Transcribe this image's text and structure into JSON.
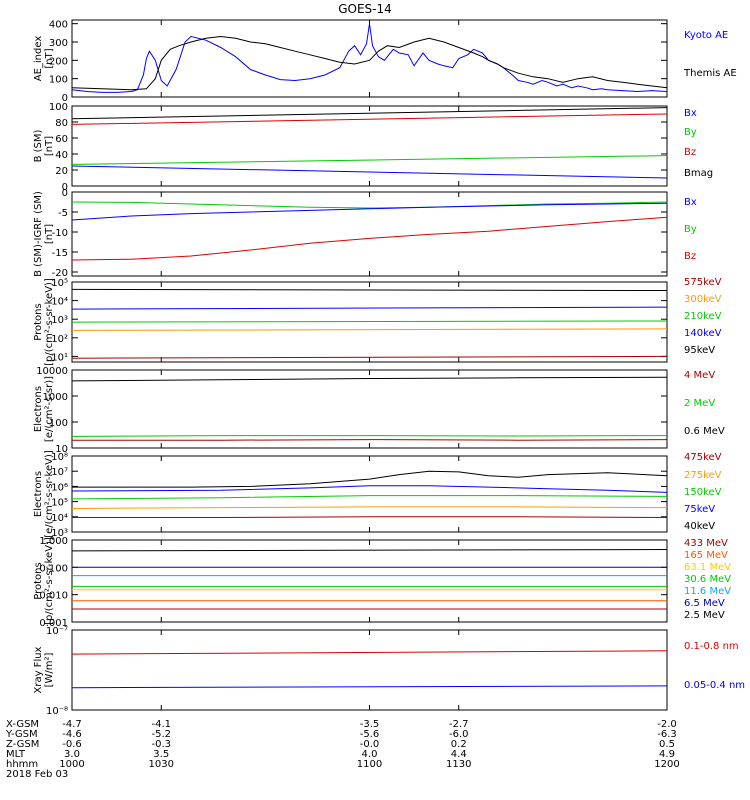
{
  "title": "GOES-14",
  "chart_data": [
    {
      "type": "line",
      "ylabel": "AE_index\n[nT]",
      "ylim": [
        0,
        420
      ],
      "yscale": "linear",
      "yticks": [
        0,
        100,
        200,
        300,
        400
      ],
      "ytick_labels": [
        "0",
        "100",
        "200",
        "300",
        "400"
      ],
      "legend": [
        {
          "name": "Kyoto AE",
          "color": "#0000ff"
        },
        {
          "name": "Themis AE",
          "color": "#000000"
        }
      ],
      "series": [
        {
          "name": "Kyoto AE",
          "color": "#0000ff",
          "x": [
            1000,
            1005,
            1010,
            1015,
            1020,
            1022,
            1024,
            1025,
            1026,
            1028,
            1030,
            1032,
            1035,
            1038,
            1040,
            1045,
            1050,
            1055,
            1060,
            1065,
            1070,
            1075,
            1080,
            1085,
            1090,
            1093,
            1095,
            1097,
            1099,
            1100,
            1101,
            1103,
            1105,
            1108,
            1110,
            1113,
            1115,
            1118,
            1120,
            1123,
            1125,
            1128,
            1130,
            1133,
            1135,
            1138,
            1140,
            1143,
            1145,
            1148,
            1150,
            1153,
            1155,
            1158,
            1160,
            1163,
            1165,
            1168,
            1170,
            1173,
            1175,
            1178,
            1180,
            1185,
            1190,
            1195,
            1200
          ],
          "y": [
            40,
            30,
            25,
            25,
            30,
            40,
            120,
            210,
            250,
            200,
            90,
            60,
            150,
            300,
            330,
            310,
            270,
            220,
            150,
            120,
            95,
            90,
            100,
            120,
            160,
            250,
            280,
            230,
            290,
            400,
            280,
            220,
            200,
            260,
            240,
            230,
            170,
            240,
            200,
            180,
            170,
            160,
            210,
            230,
            260,
            240,
            200,
            180,
            160,
            120,
            90,
            80,
            70,
            90,
            80,
            60,
            70,
            50,
            60,
            50,
            40,
            45,
            40,
            35,
            30,
            35,
            30
          ]
        },
        {
          "name": "Themis AE",
          "color": "#000000",
          "x": [
            1000,
            1010,
            1020,
            1025,
            1028,
            1030,
            1033,
            1036,
            1040,
            1045,
            1050,
            1055,
            1060,
            1065,
            1070,
            1075,
            1080,
            1085,
            1090,
            1095,
            1100,
            1103,
            1106,
            1110,
            1115,
            1120,
            1125,
            1130,
            1135,
            1138,
            1140,
            1143,
            1145,
            1150,
            1155,
            1160,
            1165,
            1170,
            1175,
            1180,
            1185,
            1190,
            1195,
            1200
          ],
          "y": [
            50,
            45,
            40,
            45,
            100,
            200,
            260,
            280,
            300,
            320,
            330,
            320,
            300,
            290,
            270,
            250,
            230,
            210,
            190,
            180,
            200,
            250,
            280,
            270,
            300,
            320,
            300,
            270,
            240,
            220,
            200,
            180,
            160,
            130,
            110,
            100,
            80,
            100,
            110,
            90,
            80,
            70,
            60,
            50
          ]
        }
      ]
    },
    {
      "type": "line",
      "ylabel": "B (SM)\n[nT]",
      "ylim": [
        0,
        100
      ],
      "yscale": "linear",
      "yticks": [
        0,
        20,
        40,
        60,
        80,
        100
      ],
      "ytick_labels": [
        "0",
        "20",
        "40",
        "60",
        "80",
        "100"
      ],
      "legend": [
        {
          "name": "Bx",
          "color": "#0000ff"
        },
        {
          "name": "By",
          "color": "#00cc00"
        },
        {
          "name": "Bz",
          "color": "#dd0000"
        },
        {
          "name": "Bmag",
          "color": "#000000"
        }
      ],
      "series": [
        {
          "name": "Bmag",
          "color": "#000000",
          "x": [
            1000,
            1200
          ],
          "y": [
            84,
            98
          ]
        },
        {
          "name": "Bz",
          "color": "#dd0000",
          "x": [
            1000,
            1200
          ],
          "y": [
            77,
            90
          ]
        },
        {
          "name": "By",
          "color": "#00cc00",
          "x": [
            1000,
            1200
          ],
          "y": [
            27,
            38
          ]
        },
        {
          "name": "Bx",
          "color": "#0000ff",
          "x": [
            1000,
            1200
          ],
          "y": [
            25,
            10
          ]
        }
      ]
    },
    {
      "type": "line",
      "ylabel": "B (SM)-IGRF (SM)\n[nT]",
      "ylim": [
        -21,
        0
      ],
      "yscale": "linear",
      "yticks": [
        -20,
        -15,
        -10,
        -5,
        0
      ],
      "ytick_labels": [
        "-20",
        "-15",
        "-10",
        "-5",
        "0"
      ],
      "legend": [
        {
          "name": "Bx",
          "color": "#0000ff"
        },
        {
          "name": "By",
          "color": "#00cc00"
        },
        {
          "name": "Bz",
          "color": "#dd0000"
        }
      ],
      "series": [
        {
          "name": "By",
          "color": "#00cc00",
          "x": [
            1000,
            1020,
            1040,
            1060,
            1080,
            1100,
            1120,
            1140,
            1160,
            1180,
            1200
          ],
          "y": [
            -2.5,
            -2.6,
            -3.0,
            -3.4,
            -3.8,
            -4.0,
            -3.8,
            -3.4,
            -3.0,
            -2.8,
            -2.5
          ]
        },
        {
          "name": "Bx",
          "color": "#0000ff",
          "x": [
            1000,
            1020,
            1040,
            1060,
            1080,
            1100,
            1120,
            1140,
            1160,
            1180,
            1200
          ],
          "y": [
            -7.0,
            -6.0,
            -5.4,
            -5.0,
            -4.6,
            -4.2,
            -3.8,
            -3.5,
            -3.2,
            -3.0,
            -2.8
          ]
        },
        {
          "name": "Bz",
          "color": "#dd0000",
          "x": [
            1000,
            1020,
            1040,
            1060,
            1080,
            1100,
            1120,
            1140,
            1160,
            1180,
            1200
          ],
          "y": [
            -17.0,
            -16.8,
            -16.0,
            -14.5,
            -12.8,
            -11.6,
            -10.6,
            -9.8,
            -8.6,
            -7.4,
            -6.3
          ]
        }
      ]
    },
    {
      "type": "line",
      "ylabel": "Protons\n[p/(cm²-s-sr-keV)]",
      "ylim": [
        5,
        100000
      ],
      "yscale": "log",
      "yticks": [
        10,
        100,
        1000,
        10000,
        100000
      ],
      "ytick_labels": [
        "10¹",
        "10²",
        "10³",
        "10⁴",
        "10⁵"
      ],
      "legend": [
        {
          "name": "575keV",
          "color": "#aa0000"
        },
        {
          "name": "300keV",
          "color": "#ff9900"
        },
        {
          "name": "210keV",
          "color": "#00cc00"
        },
        {
          "name": "140keV",
          "color": "#0000ff"
        },
        {
          "name": "95keV",
          "color": "#000000"
        }
      ],
      "series": [
        {
          "name": "95keV",
          "color": "#000000",
          "x": [
            1000,
            1200
          ],
          "y": [
            40000,
            35000
          ]
        },
        {
          "name": "140keV",
          "color": "#0000ff",
          "x": [
            1000,
            1200
          ],
          "y": [
            3500,
            4500
          ]
        },
        {
          "name": "210keV",
          "color": "#00cc00",
          "x": [
            1000,
            1200
          ],
          "y": [
            700,
            800
          ]
        },
        {
          "name": "300keV",
          "color": "#ff9900",
          "x": [
            1000,
            1200
          ],
          "y": [
            250,
            300
          ]
        },
        {
          "name": "575keV",
          "color": "#aa0000",
          "x": [
            1000,
            1200
          ],
          "y": [
            8,
            10
          ]
        }
      ]
    },
    {
      "type": "line",
      "ylabel": "Electrons\n[e/(cm²-s-sr)]",
      "ylim": [
        10,
        10000
      ],
      "yscale": "log",
      "yticks": [
        10,
        100,
        1000,
        10000
      ],
      "ytick_labels": [
        "10",
        "100",
        "1000",
        "10000"
      ],
      "legend": [
        {
          "name": "4 MeV",
          "color": "#aa0000"
        },
        {
          "name": "2 MeV",
          "color": "#00cc00"
        },
        {
          "name": "0.6 MeV",
          "color": "#000000"
        }
      ],
      "series": [
        {
          "name": "0.6 MeV",
          "color": "#000000",
          "x": [
            1000,
            1050,
            1100,
            1150,
            1200
          ],
          "y": [
            3800,
            4200,
            4700,
            5000,
            5300
          ]
        },
        {
          "name": "2 MeV",
          "color": "#00cc00",
          "x": [
            1000,
            1050,
            1100,
            1150,
            1200
          ],
          "y": [
            28,
            30,
            30,
            29,
            30
          ]
        },
        {
          "name": "4 MeV",
          "color": "#aa0000",
          "x": [
            1000,
            1050,
            1100,
            1150,
            1200
          ],
          "y": [
            20,
            20,
            21,
            20,
            21
          ]
        }
      ]
    },
    {
      "type": "line",
      "ylabel": "Electrons\n[e/(cm²-s-sr-keV)]",
      "ylim": [
        1000,
        100000000
      ],
      "yscale": "log",
      "yticks": [
        1000,
        10000,
        100000,
        1000000,
        10000000,
        100000000
      ],
      "ytick_labels": [
        "10³",
        "10⁴",
        "10⁵",
        "10⁶",
        "10⁷",
        "10⁸"
      ],
      "legend": [
        {
          "name": "475keV",
          "color": "#aa0000"
        },
        {
          "name": "275keV",
          "color": "#ff9900"
        },
        {
          "name": "150keV",
          "color": "#00cc00"
        },
        {
          "name": "75keV",
          "color": "#0000ff"
        },
        {
          "name": "40keV",
          "color": "#000000"
        }
      ],
      "series": [
        {
          "name": "40keV",
          "color": "#000000",
          "x": [
            1000,
            1040,
            1060,
            1080,
            1100,
            1110,
            1120,
            1130,
            1140,
            1150,
            1160,
            1180,
            1200
          ],
          "y": [
            900000,
            900000,
            1000000,
            1500000,
            3000000,
            6000000,
            10000000,
            9000000,
            5000000,
            4000000,
            6000000,
            8000000,
            5000000
          ]
        },
        {
          "name": "75keV",
          "color": "#0000ff",
          "x": [
            1000,
            1050,
            1080,
            1100,
            1120,
            1140,
            1160,
            1180,
            1200
          ],
          "y": [
            500000,
            550000,
            800000,
            1100000,
            1100000,
            900000,
            700000,
            550000,
            400000
          ]
        },
        {
          "name": "150keV",
          "color": "#00cc00",
          "x": [
            1000,
            1050,
            1100,
            1150,
            1200
          ],
          "y": [
            150000,
            180000,
            250000,
            250000,
            220000
          ]
        },
        {
          "name": "275keV",
          "color": "#ff9900",
          "x": [
            1000,
            1050,
            1100,
            1150,
            1200
          ],
          "y": [
            35000,
            40000,
            45000,
            45000,
            40000
          ]
        },
        {
          "name": "475keV",
          "color": "#aa0000",
          "x": [
            1000,
            1050,
            1100,
            1150,
            1200
          ],
          "y": [
            9000,
            9000,
            10000,
            10000,
            9000
          ]
        }
      ]
    },
    {
      "type": "line",
      "ylabel": "Protons\n[p/(cm²-s-sr-keV)]",
      "ylim": [
        0.001,
        1.0
      ],
      "yscale": "log",
      "yticks": [
        0.001,
        0.01,
        0.1,
        1.0
      ],
      "ytick_labels": [
        "0.001",
        "0.010",
        "0.100",
        "1.000"
      ],
      "legend": [
        {
          "name": "433 MeV",
          "color": "#aa0000"
        },
        {
          "name": "165 MeV",
          "color": "#ff5500"
        },
        {
          "name": "63.1 MeV",
          "color": "#ffcc00"
        },
        {
          "name": "30.6 MeV",
          "color": "#00cc00"
        },
        {
          "name": "11.6 MeV",
          "color": "#00aaff"
        },
        {
          "name": "6.5 MeV",
          "color": "#0000aa"
        },
        {
          "name": "2.5 MeV",
          "color": "#000000"
        }
      ],
      "series": [
        {
          "name": "2.5 MeV",
          "color": "#000000",
          "x": [
            1000,
            1200
          ],
          "y": [
            0.4,
            0.45
          ]
        },
        {
          "name": "6.5 MeV",
          "color": "#0000aa",
          "x": [
            1000,
            1200
          ],
          "y": [
            0.1,
            0.1
          ]
        },
        {
          "name": "11.6 MeV",
          "color": "#00aaff",
          "x": [
            1000,
            1200
          ],
          "y": [
            0.05,
            0.05
          ]
        },
        {
          "name": "30.6 MeV",
          "color": "#00cc00",
          "x": [
            1000,
            1200
          ],
          "y": [
            0.02,
            0.02
          ]
        },
        {
          "name": "63.1 MeV",
          "color": "#ffcc00",
          "x": [
            1000,
            1200
          ],
          "y": [
            0.015,
            0.015
          ]
        },
        {
          "name": "165 MeV",
          "color": "#ff5500",
          "x": [
            1000,
            1200
          ],
          "y": [
            0.006,
            0.006
          ]
        },
        {
          "name": "433 MeV",
          "color": "#aa0000",
          "x": [
            1000,
            1200
          ],
          "y": [
            0.003,
            0.003
          ]
        }
      ]
    },
    {
      "type": "line",
      "ylabel": "Xray Flux\n[W/m²]",
      "ylim": [
        1e-08,
        1e-07
      ],
      "yscale": "log",
      "yticks": [
        1e-08,
        1e-07
      ],
      "ytick_labels": [
        "10⁻⁸",
        "10⁻⁷"
      ],
      "legend": [
        {
          "name": "0.1-0.8 nm",
          "color": "#dd0000"
        },
        {
          "name": "0.05-0.4 nm",
          "color": "#0000ff"
        }
      ],
      "series": [
        {
          "name": "0.1-0.8 nm",
          "color": "#dd0000",
          "x": [
            1000,
            1200
          ],
          "y": [
            5e-08,
            5.5e-08
          ]
        },
        {
          "name": "0.05-0.4 nm",
          "color": "#0000ff",
          "x": [
            1000,
            1200
          ],
          "y": [
            1.9e-08,
            2e-08
          ]
        }
      ]
    }
  ],
  "x_axis": {
    "xlim": [
      1000,
      1200
    ],
    "tick_positions": [
      1000,
      1030,
      1100,
      1130,
      1200
    ],
    "rows": [
      {
        "label": "X-GSM",
        "values": [
          "-4.7",
          "-4.1",
          "-3.5",
          "-2.7",
          "-2.0"
        ]
      },
      {
        "label": "Y-GSM",
        "values": [
          "-4.6",
          "-5.2",
          "-5.6",
          "-6.0",
          "-6.3"
        ]
      },
      {
        "label": "Z-GSM",
        "values": [
          "-0.6",
          "-0.3",
          "-0.0",
          "0.2",
          "0.5"
        ]
      },
      {
        "label": "MLT",
        "values": [
          "3.0",
          "3.5",
          "4.0",
          "4.4",
          "4.9"
        ]
      },
      {
        "label": "hhmm",
        "values": [
          "1000",
          "1030",
          "1100",
          "1130",
          "1200"
        ]
      }
    ],
    "date": "2018 Feb 03"
  }
}
